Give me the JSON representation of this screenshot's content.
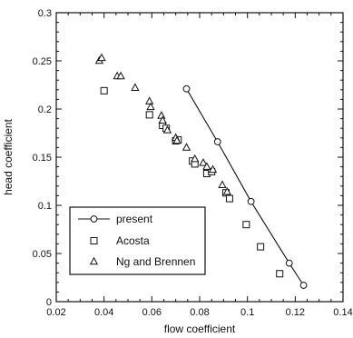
{
  "chart_data": {
    "type": "scatter",
    "title": "",
    "xlabel": "flow coefficient",
    "ylabel": "head coefficient",
    "xlim": [
      0.02,
      0.14
    ],
    "ylim": [
      0,
      0.3
    ],
    "xticks": [
      0.02,
      0.04,
      0.06,
      0.08,
      0.1,
      0.12,
      0.14
    ],
    "yticks": [
      0,
      0.05,
      0.1,
      0.15,
      0.2,
      0.25,
      0.3
    ],
    "xtick_labels": [
      "0.02",
      "0.04",
      "0.06",
      "0.08",
      "0.1",
      "0.12",
      "0.14"
    ],
    "ytick_labels": [
      "0",
      "0.05",
      "0.1",
      "0.15",
      "0.2",
      "0.25",
      "0.3"
    ],
    "grid": false,
    "legend_position": "bottom-left",
    "series": [
      {
        "name": "present",
        "marker": "circle",
        "line": true,
        "x": [
          0.0745,
          0.0875,
          0.1015,
          0.1175,
          0.1235
        ],
        "y": [
          0.221,
          0.166,
          0.104,
          0.04,
          0.017
        ]
      },
      {
        "name": "Acosta",
        "marker": "square",
        "line": false,
        "x": [
          0.04,
          0.059,
          0.0645,
          0.066,
          0.07,
          0.071,
          0.077,
          0.078,
          0.083,
          0.085,
          0.091,
          0.0925,
          0.0995,
          0.1055,
          0.1135
        ],
        "y": [
          0.219,
          0.194,
          0.183,
          0.18,
          0.167,
          0.168,
          0.146,
          0.143,
          0.133,
          0.135,
          0.113,
          0.107,
          0.08,
          0.057,
          0.029
        ]
      },
      {
        "name": "Ng and Brennen",
        "marker": "triangle",
        "line": false,
        "x": [
          0.038,
          0.039,
          0.0455,
          0.047,
          0.053,
          0.059,
          0.0595,
          0.064,
          0.0645,
          0.0665,
          0.07,
          0.0705,
          0.0745,
          0.078,
          0.0815,
          0.083,
          0.0855,
          0.0895,
          0.0915
        ],
        "y": [
          0.25,
          0.253,
          0.234,
          0.234,
          0.222,
          0.208,
          0.202,
          0.193,
          0.188,
          0.178,
          0.17,
          0.167,
          0.16,
          0.148,
          0.144,
          0.14,
          0.137,
          0.121,
          0.114
        ]
      }
    ]
  }
}
